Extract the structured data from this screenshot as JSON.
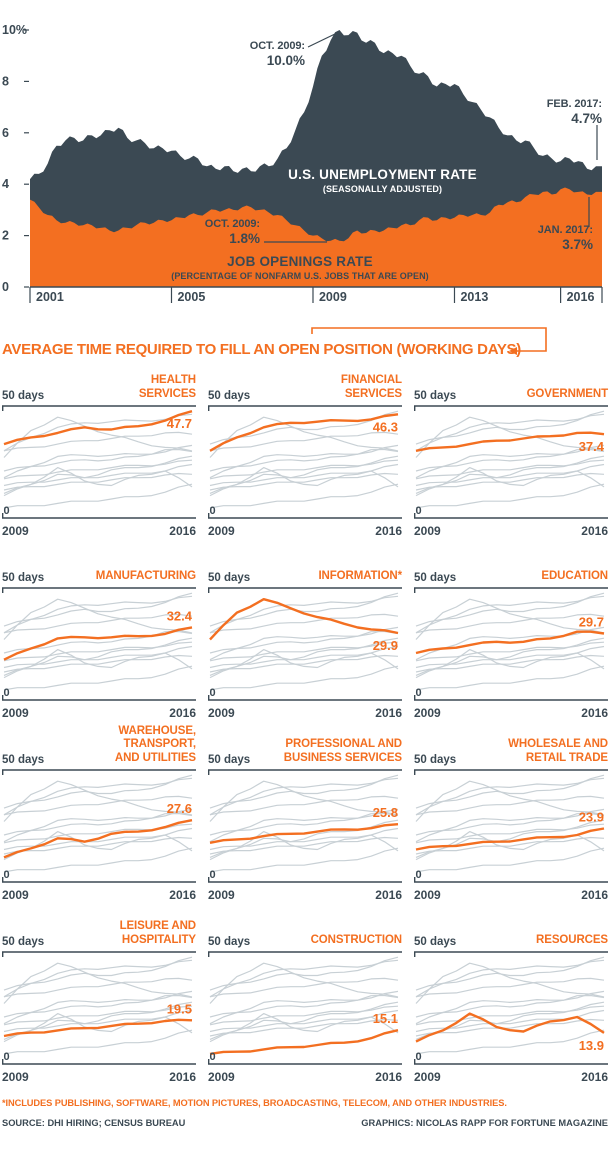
{
  "colors": {
    "dark": "#3b4953",
    "orange": "#f36f21",
    "gray_line": "#c8d0d5",
    "background": "#ffffff"
  },
  "footnote": "*INCLUDES PUBLISHING, SOFTWARE, MOTION PICTURES, BROADCASTING, TELECOM, AND OTHER INDUSTRIES.",
  "source": "SOURCE: DHI HIRING; CENSUS BUREAU",
  "credit": "GRAPHICS: NICOLAS RAPP FOR FORTUNE MAGAZINE",
  "chart_data": [
    {
      "type": "area",
      "title": "U.S. UNEMPLOYMENT RATE",
      "x_range": [
        2001,
        2017.17
      ],
      "ylim": [
        0,
        10.5
      ],
      "y_tick_values": [
        10,
        8,
        6,
        4,
        2,
        0
      ],
      "y_tick_labels": [
        "10%",
        "8",
        "6",
        "4",
        "2",
        "0"
      ],
      "x_tick_values": [
        2001,
        2005,
        2009,
        2013,
        2016
      ],
      "x_tick_labels": [
        "2001",
        "2005",
        "2009",
        "2013",
        "2016"
      ],
      "series": [
        {
          "name": "U.S. UNEMPLOYMENT RATE",
          "subtitle": "(SEASONALLY ADJUSTED)",
          "color": "#3b4953",
          "x_start": 2001,
          "x_step": 0.25,
          "values": [
            4.2,
            4.4,
            4.8,
            5.5,
            5.7,
            5.8,
            5.7,
            5.9,
            5.9,
            6.1,
            6.2,
            5.8,
            5.7,
            5.6,
            5.4,
            5.4,
            5.3,
            5.1,
            5.0,
            5.0,
            4.7,
            4.6,
            4.7,
            4.5,
            4.6,
            4.5,
            4.7,
            4.7,
            5.0,
            5.4,
            6.1,
            6.8,
            7.8,
            9.0,
            9.6,
            10.0,
            9.8,
            9.9,
            9.5,
            9.5,
            9.1,
            9.1,
            9.0,
            8.6,
            8.3,
            8.2,
            7.8,
            7.9,
            7.9,
            7.5,
            7.2,
            6.9,
            6.6,
            6.2,
            5.9,
            5.7,
            5.7,
            5.4,
            5.1,
            5.0,
            4.9,
            5.0,
            4.9,
            4.6,
            4.7
          ]
        },
        {
          "name": "JOB OPENINGS RATE",
          "subtitle": "(PERCENTAGE OF NONFARM U.S. JOBS THAT ARE OPEN)",
          "color": "#f36f21",
          "x_start": 2001,
          "x_step": 0.25,
          "values": [
            3.4,
            3.1,
            2.8,
            2.6,
            2.5,
            2.5,
            2.4,
            2.4,
            2.3,
            2.2,
            2.2,
            2.3,
            2.4,
            2.5,
            2.5,
            2.6,
            2.6,
            2.7,
            2.8,
            2.8,
            2.9,
            3.0,
            3.0,
            3.0,
            3.1,
            3.1,
            3.0,
            2.9,
            2.8,
            2.6,
            2.4,
            2.2,
            2.0,
            1.9,
            1.8,
            1.8,
            1.9,
            2.2,
            2.1,
            2.2,
            2.2,
            2.3,
            2.4,
            2.4,
            2.6,
            2.7,
            2.6,
            2.7,
            2.7,
            2.8,
            2.8,
            2.8,
            2.9,
            3.2,
            3.3,
            3.3,
            3.5,
            3.6,
            3.7,
            3.6,
            3.8,
            3.8,
            3.7,
            3.6,
            3.7
          ]
        }
      ],
      "annotations": [
        {
          "id": "unemployment-peak",
          "line1": "OCT. 2009:",
          "line2": "10.0%"
        },
        {
          "id": "unemployment-end",
          "line1": "FEB. 2017:",
          "line2": "4.7%"
        },
        {
          "id": "openings-low",
          "line1": "OCT. 2009:",
          "line2": "1.8%"
        },
        {
          "id": "openings-end",
          "line1": "JAN. 2017:",
          "line2": "3.7%"
        }
      ]
    },
    {
      "type": "line",
      "title": "AVERAGE TIME REQUIRED TO FILL AN OPEN POSITION (WORKING DAYS)",
      "x": [
        2009,
        2010,
        2011,
        2012,
        2013,
        2014,
        2015,
        2016
      ],
      "ylim": [
        0,
        50
      ],
      "y_top_label": "50 days",
      "y_bottom_label": "0",
      "x_start_label": "2009",
      "x_end_label": "2016",
      "panels": [
        {
          "label": "HEALTH\nSERVICES",
          "value_label": "47.7",
          "label_pos": "below",
          "values": [
            33,
            36,
            38,
            40.5,
            39.5,
            41,
            43.5,
            47.7
          ]
        },
        {
          "label": "FINANCIAL\nSERVICES",
          "value_label": "46.3",
          "label_pos": "below",
          "values": [
            30,
            36,
            40.5,
            42.5,
            43,
            43.5,
            44,
            46.3
          ]
        },
        {
          "label": "GOVERNMENT",
          "value_label": "37.4",
          "label_pos": "below",
          "values": [
            30,
            31.5,
            33,
            34.5,
            35.5,
            36.5,
            38,
            37.4
          ]
        },
        {
          "label": "MANUFACTURING",
          "value_label": "32.4",
          "label_pos": "above",
          "values": [
            18,
            23,
            27.5,
            28,
            28,
            28.5,
            29.5,
            32.4
          ]
        },
        {
          "label": "INFORMATION*",
          "value_label": "29.9",
          "label_pos": "below",
          "values": [
            27,
            39,
            45,
            41,
            37,
            34,
            31.5,
            29.9
          ]
        },
        {
          "label": "EDUCATION",
          "value_label": "29.7",
          "label_pos": "above",
          "values": [
            21,
            23,
            24.5,
            26,
            26,
            27.5,
            30.5,
            29.7
          ]
        },
        {
          "label": "WAREHOUSE, TRANSPORT,\nAND UTILITIES",
          "value_label": "27.6",
          "label_pos": "above",
          "values": [
            11,
            15,
            19.5,
            18,
            21.5,
            22.5,
            24.5,
            27.6
          ]
        },
        {
          "label": "PROFESSIONAL AND\nBUSINESS SERVICES",
          "value_label": "25.8",
          "label_pos": "above",
          "values": [
            17.5,
            19,
            20.5,
            21.5,
            22.5,
            23.5,
            24,
            25.8
          ]
        },
        {
          "label": "WHOLESALE AND\nRETAIL TRADE",
          "value_label": "23.9",
          "label_pos": "above",
          "values": [
            14.5,
            16,
            17,
            18,
            19,
            20,
            21,
            23.9
          ]
        },
        {
          "label": "LEISURE AND\nHOSPITALITY",
          "value_label": "19.5",
          "label_pos": "above",
          "values": [
            12.5,
            14,
            15,
            16,
            17,
            18,
            19.2,
            19.5
          ]
        },
        {
          "label": "CONSTRUCTION",
          "value_label": "15.1",
          "label_pos": "above",
          "values": [
            4.5,
            5.5,
            6.5,
            7.5,
            8.5,
            9.5,
            11.5,
            15.1
          ]
        },
        {
          "label": "RESOURCES",
          "value_label": "13.9",
          "label_pos": "below",
          "values": [
            10,
            15,
            22.5,
            16.5,
            14.5,
            19,
            21,
            13.9
          ]
        }
      ]
    }
  ]
}
